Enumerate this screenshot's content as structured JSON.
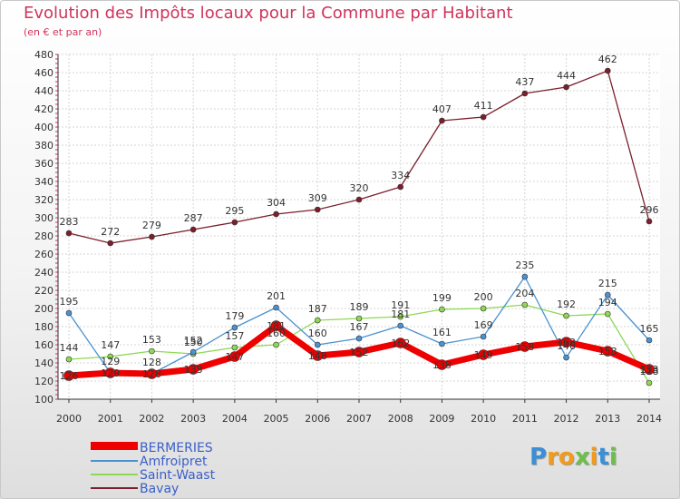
{
  "header": {
    "title": "Evolution des Impôts locaux pour la Commune par Habitant",
    "subtitle": "(en € et par an)"
  },
  "logo": {
    "p": "P",
    "r": "r",
    "o": "o",
    "x": "x",
    "i": "i",
    "t": "t",
    "i2": "i"
  },
  "chart_data": {
    "type": "line",
    "title": "Evolution des Impôts locaux pour la Commune par Habitant",
    "subtitle": "(en € et par an)",
    "xlabel": "",
    "ylabel": "",
    "ylim": [
      100,
      480
    ],
    "yticks": [
      100,
      120,
      140,
      160,
      180,
      200,
      220,
      240,
      260,
      280,
      300,
      320,
      340,
      360,
      380,
      400,
      420,
      440,
      460,
      480
    ],
    "categories": [
      "2000",
      "2001",
      "2002",
      "2003",
      "2004",
      "2005",
      "2006",
      "2007",
      "2008",
      "2009",
      "2010",
      "2011",
      "2012",
      "2013",
      "2014"
    ],
    "grid": true,
    "legend_position": "bottom-left",
    "series": [
      {
        "name": "Bavay",
        "color": "#7a1f2b",
        "values": [
          283,
          272,
          279,
          287,
          295,
          304,
          309,
          320,
          334,
          407,
          411,
          437,
          444,
          462,
          296
        ]
      },
      {
        "name": "Saint-Waast",
        "color": "#8ed855",
        "values": [
          144,
          147,
          153,
          150,
          157,
          160,
          187,
          189,
          191,
          199,
          200,
          204,
          192,
          194,
          118
        ]
      },
      {
        "name": "Amfroipret",
        "color": "#4a92d0",
        "values": [
          195,
          129,
          128,
          152,
          179,
          201,
          160,
          167,
          181,
          161,
          169,
          235,
          146,
          215,
          165
        ]
      },
      {
        "name": "BERMERIES",
        "color": "#ee0000",
        "values": [
          126,
          129,
          128,
          133,
          147,
          181,
          148,
          152,
          162,
          138,
          149,
          158,
          163,
          153,
          133
        ]
      }
    ],
    "legend_order": [
      "BERMERIES",
      "Amfroipret",
      "Saint-Waast",
      "Bavay"
    ],
    "legend_colors": {
      "BERMERIES": "#ee0000",
      "Amfroipret": "#4a92d0",
      "Saint-Waast": "#8ed855",
      "Bavay": "#7a1f2b"
    }
  }
}
